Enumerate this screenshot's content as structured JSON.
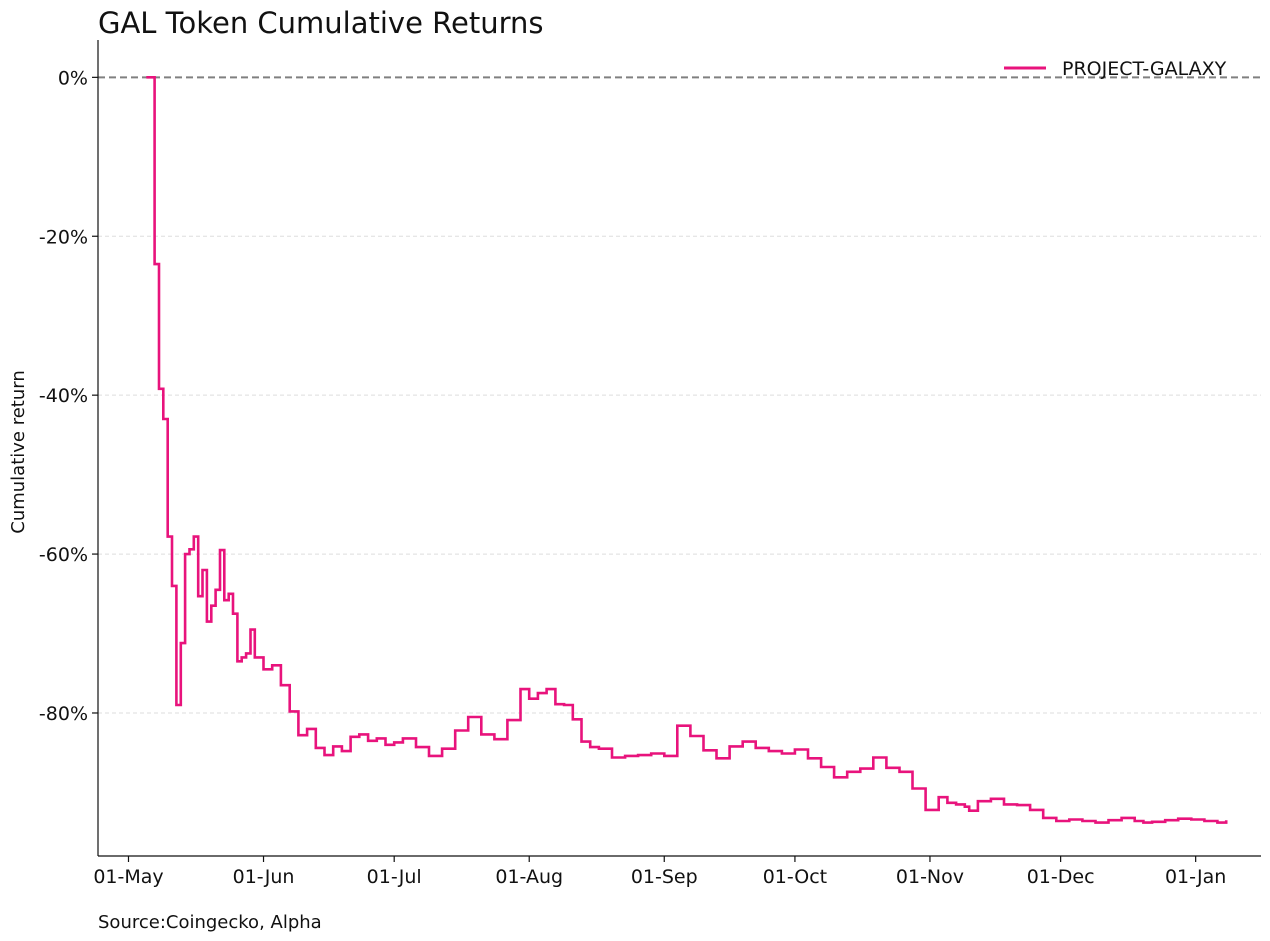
{
  "chart_data": {
    "type": "line",
    "title": "GAL Token Cumulative Returns",
    "ylabel": "Cumulative return",
    "xlabel": "",
    "source": "Source:Coingecko, Alpha",
    "y_tick_labels": [
      "0%",
      "-20%",
      "-40%",
      "-60%",
      "-80%"
    ],
    "y_ticks": [
      0,
      -20,
      -40,
      -60,
      -80
    ],
    "ylim": [
      -98,
      4.7
    ],
    "x_tick_labels": [
      "01-May",
      "01-Jun",
      "01-Jul",
      "01-Aug",
      "01-Sep",
      "01-Oct",
      "01-Nov",
      "01-Dec",
      "01-Jan"
    ],
    "x_ticks": [
      "2022-05-01",
      "2022-06-01",
      "2022-07-01",
      "2022-08-01",
      "2022-09-01",
      "2022-10-01",
      "2022-11-01",
      "2022-12-01",
      "2023-01-01"
    ],
    "xlim": [
      "2022-04-24",
      "2023-01-16"
    ],
    "grid": "y-dashed",
    "reference_line": 0,
    "legend_position": "top-right",
    "colors": {
      "series": "#e8137c",
      "reference": "#808080",
      "grid": "#dddddd"
    },
    "series": [
      {
        "name": "PROJECT-GALAXY",
        "step": true,
        "x": [
          "2022-05-06",
          "2022-05-07",
          "2022-05-08",
          "2022-05-09",
          "2022-05-10",
          "2022-05-11",
          "2022-05-12",
          "2022-05-13",
          "2022-05-14",
          "2022-05-15",
          "2022-05-16",
          "2022-05-17",
          "2022-05-18",
          "2022-05-19",
          "2022-05-20",
          "2022-05-21",
          "2022-05-22",
          "2022-05-23",
          "2022-05-24",
          "2022-05-25",
          "2022-05-26",
          "2022-05-27",
          "2022-05-28",
          "2022-05-29",
          "2022-05-30",
          "2022-06-01",
          "2022-06-03",
          "2022-06-05",
          "2022-06-07",
          "2022-06-09",
          "2022-06-11",
          "2022-06-13",
          "2022-06-15",
          "2022-06-17",
          "2022-06-19",
          "2022-06-21",
          "2022-06-23",
          "2022-06-25",
          "2022-06-27",
          "2022-06-29",
          "2022-07-01",
          "2022-07-03",
          "2022-07-06",
          "2022-07-09",
          "2022-07-12",
          "2022-07-15",
          "2022-07-18",
          "2022-07-21",
          "2022-07-24",
          "2022-07-27",
          "2022-07-30",
          "2022-08-01",
          "2022-08-03",
          "2022-08-05",
          "2022-08-07",
          "2022-08-09",
          "2022-08-11",
          "2022-08-13",
          "2022-08-15",
          "2022-08-17",
          "2022-08-20",
          "2022-08-23",
          "2022-08-26",
          "2022-08-29",
          "2022-09-01",
          "2022-09-04",
          "2022-09-07",
          "2022-09-10",
          "2022-09-13",
          "2022-09-16",
          "2022-09-19",
          "2022-09-22",
          "2022-09-25",
          "2022-09-28",
          "2022-10-01",
          "2022-10-04",
          "2022-10-07",
          "2022-10-10",
          "2022-10-13",
          "2022-10-16",
          "2022-10-19",
          "2022-10-22",
          "2022-10-25",
          "2022-10-28",
          "2022-10-31",
          "2022-11-03",
          "2022-11-05",
          "2022-11-07",
          "2022-11-09",
          "2022-11-10",
          "2022-11-12",
          "2022-11-15",
          "2022-11-18",
          "2022-11-21",
          "2022-11-24",
          "2022-11-27",
          "2022-11-30",
          "2022-12-03",
          "2022-12-06",
          "2022-12-09",
          "2022-12-12",
          "2022-12-15",
          "2022-12-18",
          "2022-12-20",
          "2022-12-22",
          "2022-12-25",
          "2022-12-28",
          "2022-12-31",
          "2023-01-03",
          "2023-01-06",
          "2023-01-08"
        ],
        "y": [
          0,
          -23.5,
          -39.2,
          -43,
          -57.8,
          -64,
          -79,
          -71.2,
          -60,
          -59.4,
          -57.8,
          -65.3,
          -62,
          -68.5,
          -66.5,
          -64.5,
          -59.5,
          -65.8,
          -65,
          -67.5,
          -73.5,
          -73,
          -72.5,
          -69.5,
          -73,
          -74.5,
          -74,
          -76.5,
          -79.8,
          -82.8,
          -82,
          -84.4,
          -85.3,
          -84.2,
          -84.8,
          -83,
          -82.7,
          -83.5,
          -83.2,
          -84,
          -83.7,
          -83.2,
          -84.3,
          -85.4,
          -84.5,
          -82.2,
          -80.5,
          -82.7,
          -83.3,
          -80.9,
          -77,
          -78.2,
          -77.5,
          -77,
          -78.9,
          -79,
          -80.8,
          -83.6,
          -84.3,
          -84.5,
          -85.6,
          -85.4,
          -85.3,
          -85.1,
          -85.4,
          -81.6,
          -82.9,
          -84.7,
          -85.7,
          -84.2,
          -83.6,
          -84.4,
          -84.8,
          -85.1,
          -84.6,
          -85.7,
          -86.8,
          -88.1,
          -87.4,
          -87,
          -85.6,
          -86.9,
          -87.4,
          -89.5,
          -92.2,
          -90.6,
          -91.3,
          -91.5,
          -91.8,
          -92.3,
          -91.1,
          -90.8,
          -91.5,
          -91.6,
          -92.2,
          -93.2,
          -93.6,
          -93.4,
          -93.6,
          -93.8,
          -93.5,
          -93.2,
          -93.6,
          -93.8,
          -93.7,
          -93.5,
          -93.3,
          -93.4,
          -93.6,
          -93.8,
          -93.5
        ]
      }
    ]
  }
}
